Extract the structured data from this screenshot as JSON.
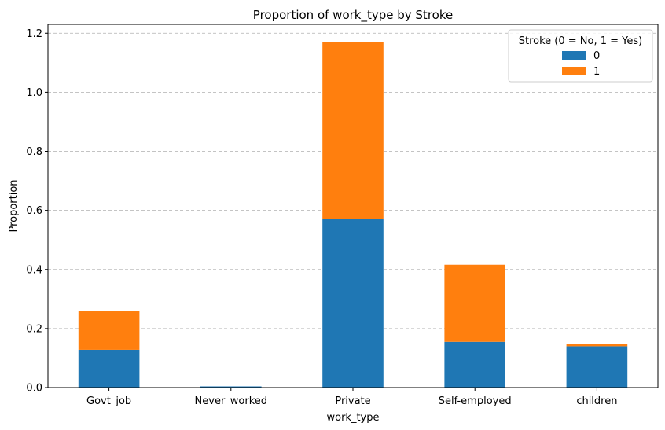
{
  "chart_data": {
    "type": "bar",
    "stacked": true,
    "title": "Proportion of work_type by Stroke",
    "xlabel": "work_type",
    "ylabel": "Proportion",
    "categories": [
      "Govt_job",
      "Never_worked",
      "Private",
      "Self-employed",
      "children"
    ],
    "series": [
      {
        "name": "0",
        "color": "#1f77b4",
        "values": [
          0.128,
          0.004,
          0.57,
          0.155,
          0.14
        ]
      },
      {
        "name": "1",
        "color": "#ff7f0e",
        "values": [
          0.132,
          0.0,
          0.6,
          0.261,
          0.008
        ]
      }
    ],
    "ylim": [
      0,
      1.23
    ],
    "yticks": [
      0.0,
      0.2,
      0.4,
      0.6,
      0.8,
      1.0,
      1.2
    ],
    "ytick_labels": [
      "0.0",
      "0.2",
      "0.4",
      "0.6",
      "0.8",
      "1.0",
      "1.2"
    ],
    "grid": "y-dashed",
    "legend": {
      "title": "Stroke (0 = No, 1 = Yes)",
      "placement": "top-right"
    }
  }
}
